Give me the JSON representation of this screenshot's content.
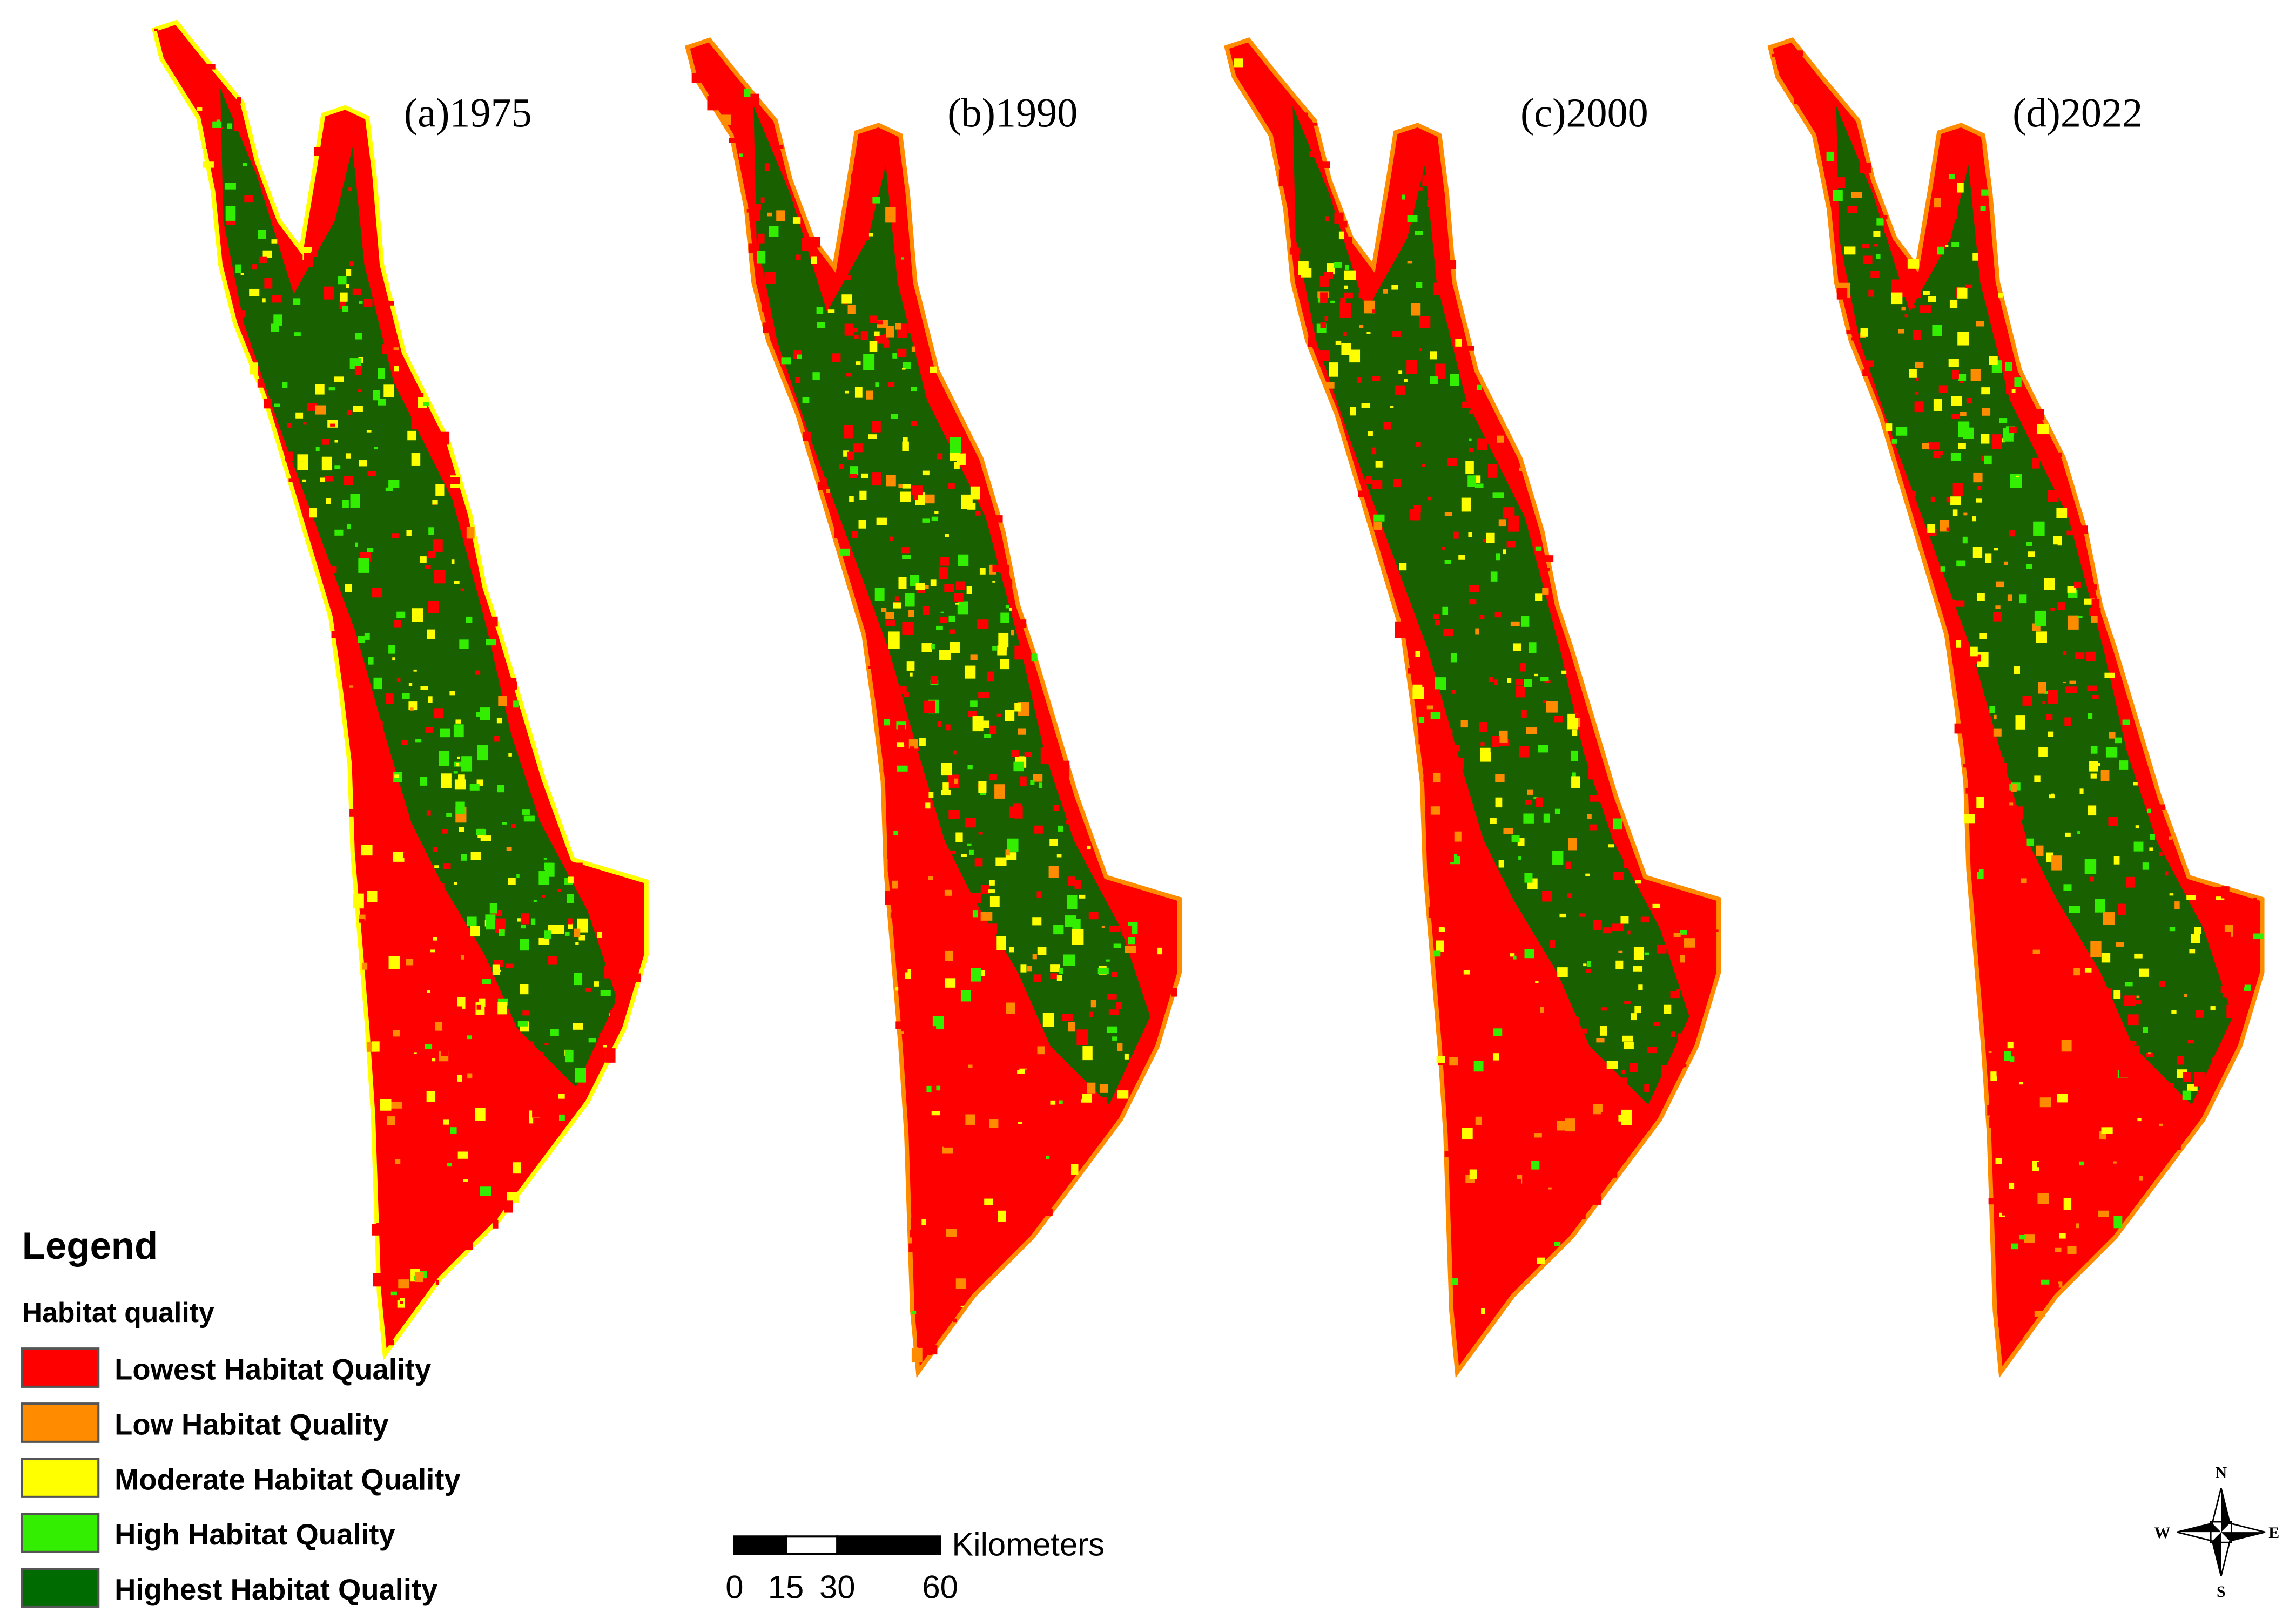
{
  "panels": [
    {
      "title": "(a)1975"
    },
    {
      "title": "(b)1990"
    },
    {
      "title": "(c)2000"
    },
    {
      "title": "(d)2022"
    }
  ],
  "legend": {
    "title": "Legend",
    "subtitle": "Habitat quality",
    "items": [
      {
        "label": "Lowest Habitat Quality",
        "color": "#ff0000"
      },
      {
        "label": "Low Habitat Quality",
        "color": "#ff8c00"
      },
      {
        "label": "Moderate Habitat Quality",
        "color": "#ffff00"
      },
      {
        "label": "High Habitat Quality",
        "color": "#33ee00"
      },
      {
        "label": "Highest Habitat Quality",
        "color": "#006b00"
      }
    ]
  },
  "scale_bar": {
    "ticks": [
      0,
      15,
      30,
      60
    ],
    "unit": "Kilometers"
  },
  "compass": {
    "n": "N",
    "e": "E",
    "s": "S",
    "w": "W"
  }
}
